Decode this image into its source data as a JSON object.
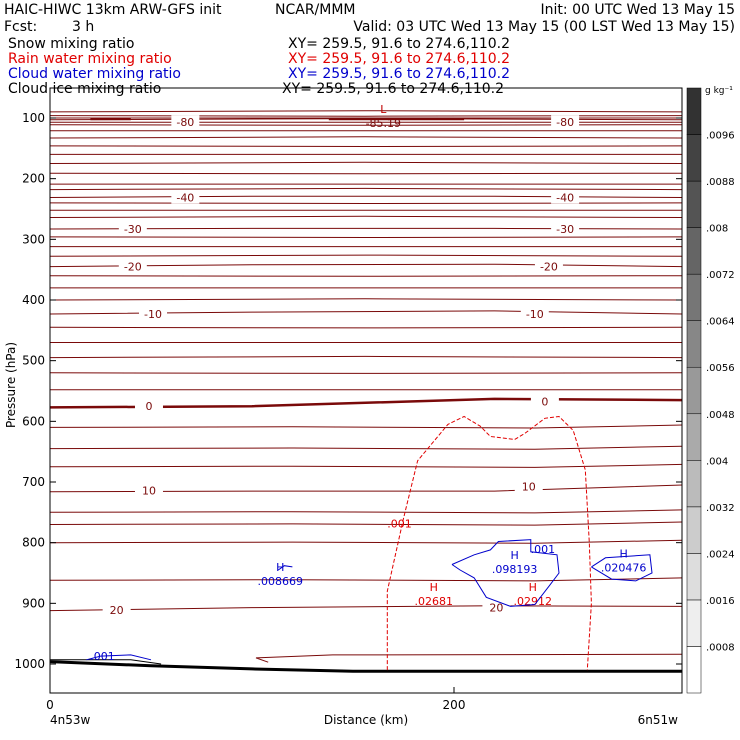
{
  "header": {
    "title_left": "HAIC-HIWC 13km ARW-GFS init",
    "title_center": "NCAR/MMM",
    "init": "Init: 00 UTC Wed 13 May 15",
    "fcst_label": "Fcst:",
    "fcst_value": "3 h",
    "valid": "Valid: 03 UTC Wed 13 May 15 (00 LST Wed 13 May 15)",
    "fields": [
      {
        "name": "Snow mixing ratio",
        "xy": "XY= 259.5, 91.6 to 274.6,110.2",
        "color": "#000000"
      },
      {
        "name": "Rain water mixing ratio",
        "xy": "XY= 259.5, 91.6 to 274.6,110.2",
        "color": "#e00000"
      },
      {
        "name": "Cloud water mixing ratio",
        "xy": "XY= 259.5, 91.6 to 274.6,110.2",
        "color": "#0000cc"
      },
      {
        "name": "Cloud ice mixing ratio",
        "xy": "XY= 259.5, 91.6 to 274.6,110.2",
        "color": "#000000"
      }
    ]
  },
  "chart_data": {
    "type": "cross-section",
    "xlabel": "Distance (km)",
    "ylabel": "Pressure (hPa)",
    "xlim": [
      0,
      313
    ],
    "ylim": [
      1050,
      80
    ],
    "x_ticks": [
      0,
      200
    ],
    "y_ticks": [
      100,
      200,
      300,
      400,
      500,
      600,
      700,
      800,
      900,
      1000
    ],
    "x_endpoints": {
      "left": "4n53w",
      "right": "6n51w"
    },
    "temperature_contours": [
      {
        "label": "-80",
        "labels_at": [
          67,
          255
        ],
        "pressure": [
          107,
          107,
          107,
          107
        ]
      },
      {
        "label": "-40",
        "labels_at": [
          67,
          255
        ],
        "pressure": [
          231,
          229,
          229,
          231
        ]
      },
      {
        "label": "-30",
        "labels_at": [
          41,
          255
        ],
        "pressure": [
          283,
          282,
          282,
          283
        ]
      },
      {
        "label": "-20",
        "labels_at": [
          41,
          247
        ],
        "pressure": [
          345,
          342,
          341,
          345
        ]
      },
      {
        "label": "-10",
        "labels_at": [
          51,
          240
        ],
        "pressure": [
          423,
          420,
          418,
          423
        ]
      },
      {
        "label": "0",
        "labels_at": [
          49,
          245
        ],
        "pressure": [
          577,
          575,
          563,
          565
        ]
      },
      {
        "label": "10",
        "labels_at": [
          49,
          237
        ],
        "pressure": [
          716,
          715,
          715,
          705
        ]
      },
      {
        "label": "20",
        "labels_at": [
          33,
          221
        ],
        "pressure": [
          912,
          907,
          904,
          905
        ]
      }
    ],
    "low_marker": {
      "label": "L",
      "value": "-85.19",
      "x": 165,
      "p": 95
    },
    "rain_water": {
      "contour": ".001",
      "color": "#e00000",
      "maxima": [
        {
          "label": "H",
          "value": ".02681",
          "x": 190,
          "p": 893
        },
        {
          "label": "H",
          "value": ".02912",
          "x": 239,
          "p": 893
        }
      ]
    },
    "cloud_water": {
      "contour": ".001",
      "color": "#0000cc",
      "maxima": [
        {
          "label": "H",
          "value": ".008669",
          "x": 114,
          "p": 860
        },
        {
          "label": "H",
          "value": ".098193",
          "x": 230,
          "p": 840
        },
        {
          "label": "H",
          "value": ".020476",
          "x": 284,
          "p": 838
        }
      ],
      "surface_contour": ".001"
    },
    "colorbar": {
      "unit": "g kg⁻¹",
      "levels": [
        ".0008",
        ".0016",
        ".0024",
        ".0032",
        ".004",
        ".0048",
        ".0056",
        ".0064",
        ".0072",
        ".008",
        ".0088",
        ".0096"
      ]
    }
  }
}
